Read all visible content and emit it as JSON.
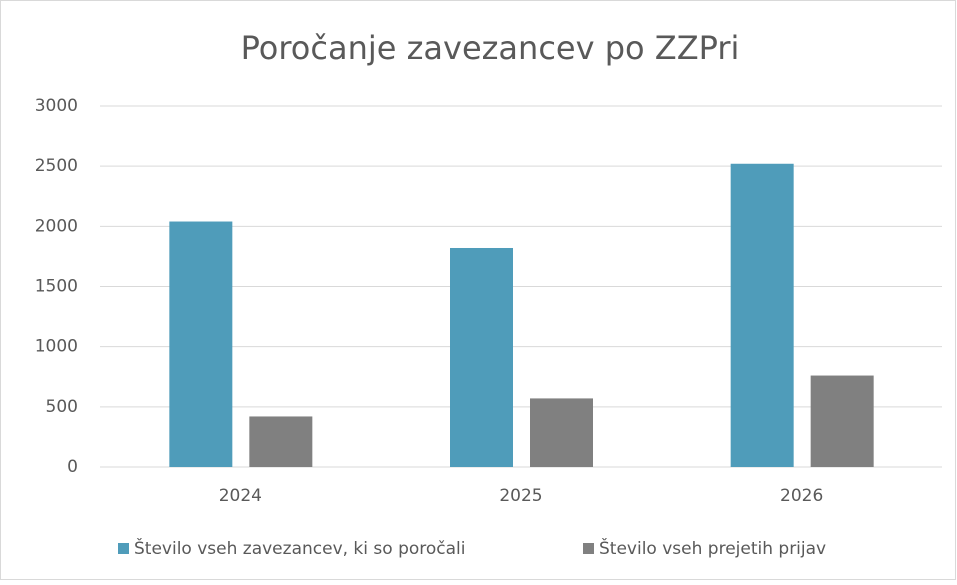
{
  "chart_data": {
    "type": "bar",
    "title": "Poročanje zavezancev po ZZPri",
    "categories": [
      "2024",
      "2025",
      "2026"
    ],
    "series": [
      {
        "name": "Število vseh zavezancev, ki so poročali",
        "color": "#4f9cba",
        "values": [
          2040,
          1820,
          2520
        ]
      },
      {
        "name": "Število vseh prejetih prijav",
        "color": "#808080",
        "values": [
          420,
          570,
          760
        ]
      }
    ],
    "ylim": [
      0,
      3000
    ],
    "yticks": [
      0,
      500,
      1000,
      1500,
      2000,
      2500,
      3000
    ],
    "grid": true,
    "legend": "bottom"
  }
}
